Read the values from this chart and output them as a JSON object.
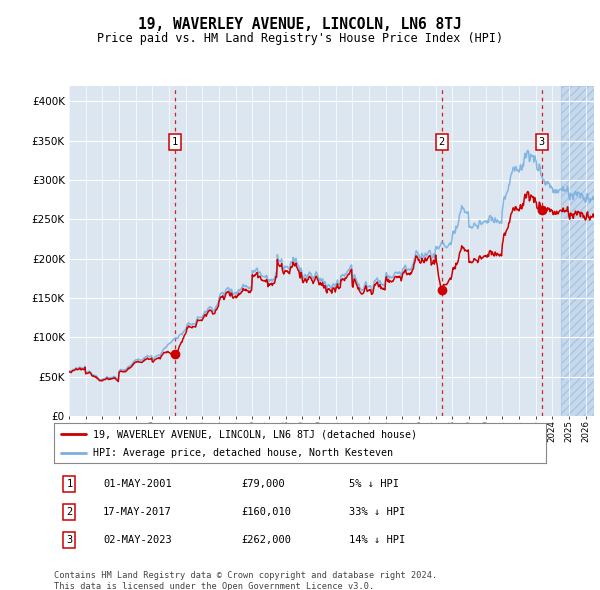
{
  "title": "19, WAVERLEY AVENUE, LINCOLN, LN6 8TJ",
  "subtitle": "Price paid vs. HM Land Registry's House Price Index (HPI)",
  "ylim": [
    0,
    420000
  ],
  "yticks": [
    0,
    50000,
    100000,
    150000,
    200000,
    250000,
    300000,
    350000,
    400000
  ],
  "ytick_labels": [
    "£0",
    "£50K",
    "£100K",
    "£150K",
    "£200K",
    "£250K",
    "£300K",
    "£350K",
    "£400K"
  ],
  "plot_bg_color": "#dce6f1",
  "grid_color": "#ffffff",
  "legend_label_red": "19, WAVERLEY AVENUE, LINCOLN, LN6 8TJ (detached house)",
  "legend_label_blue": "HPI: Average price, detached house, North Kesteven",
  "footer": "Contains HM Land Registry data © Crown copyright and database right 2024.\nThis data is licensed under the Open Government Licence v3.0.",
  "sales": [
    {
      "num": 1,
      "date": "01-MAY-2001",
      "price": 79000,
      "pct": "5% ↓ HPI",
      "year": 2001.37
    },
    {
      "num": 2,
      "date": "17-MAY-2017",
      "price": 160010,
      "pct": "33% ↓ HPI",
      "year": 2017.37
    },
    {
      "num": 3,
      "date": "02-MAY-2023",
      "price": 262000,
      "pct": "14% ↓ HPI",
      "year": 2023.37
    }
  ],
  "hpi_color": "#7ab0e0",
  "price_color": "#cc0000",
  "xmin": 1995,
  "xmax": 2026.5,
  "hatch_start": 2024.5
}
